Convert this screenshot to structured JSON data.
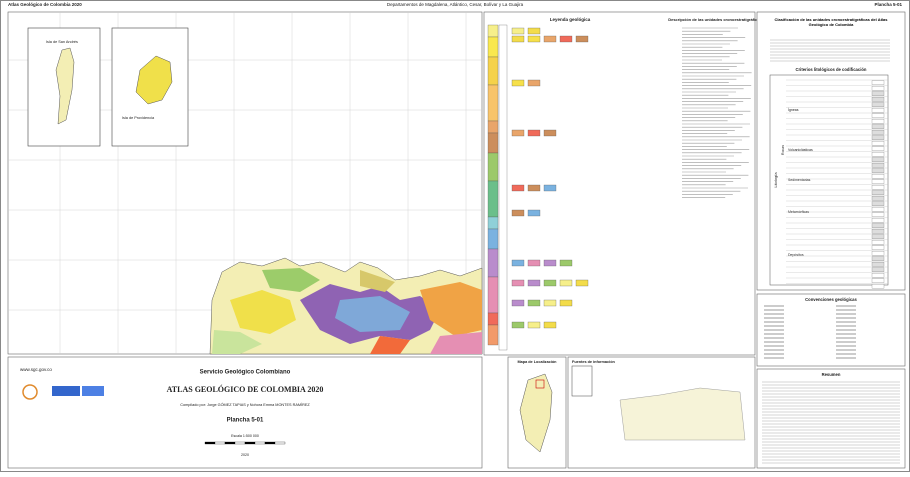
{
  "header": {
    "title": "Atlas Geológico de Colombia 2020",
    "region": "Departamentos de Magdalena, Atlántico, Cesar, Bolívar y La Guajira",
    "sheet": "Plancha 5-01"
  },
  "insets": [
    {
      "label": "Isla de San Andrés"
    },
    {
      "label": "Isla de Providencia"
    }
  ],
  "legend": {
    "title": "Leyenda geológica",
    "description_title": "Descripción de las unidades cronoestratigráficas"
  },
  "panel": {
    "classification_title": "Clasificación de las unidades cronoestratigráficas del Atlas Geológico de Colombia",
    "criteria_title": "Criterios litológicos de codificación",
    "lithology": "Litología",
    "rocks": "Rocas",
    "groups": [
      "Ígneas",
      "Volcaniclásticas",
      "Sedimentarias",
      "Metamórficas",
      "Depósitos"
    ],
    "conventions_title": "Convenciones geológicas",
    "summary_title": "Resumen"
  },
  "footer": {
    "website": "www.sgc.gov.co",
    "institution": "Servicio Geológico Colombiano",
    "title": "ATLAS GEOLÓGICO DE COLOMBIA 2020",
    "compiled": "Compilado por: Jorge GÓMEZ TAPIAS y Nohora Emma MONTES RAMÍREZ",
    "sheet": "Plancha 5-01",
    "scale": "Escala 1:500 000",
    "year": "2020",
    "location_map": "Mapa de Localización",
    "sources": "Fuentes de información"
  }
}
